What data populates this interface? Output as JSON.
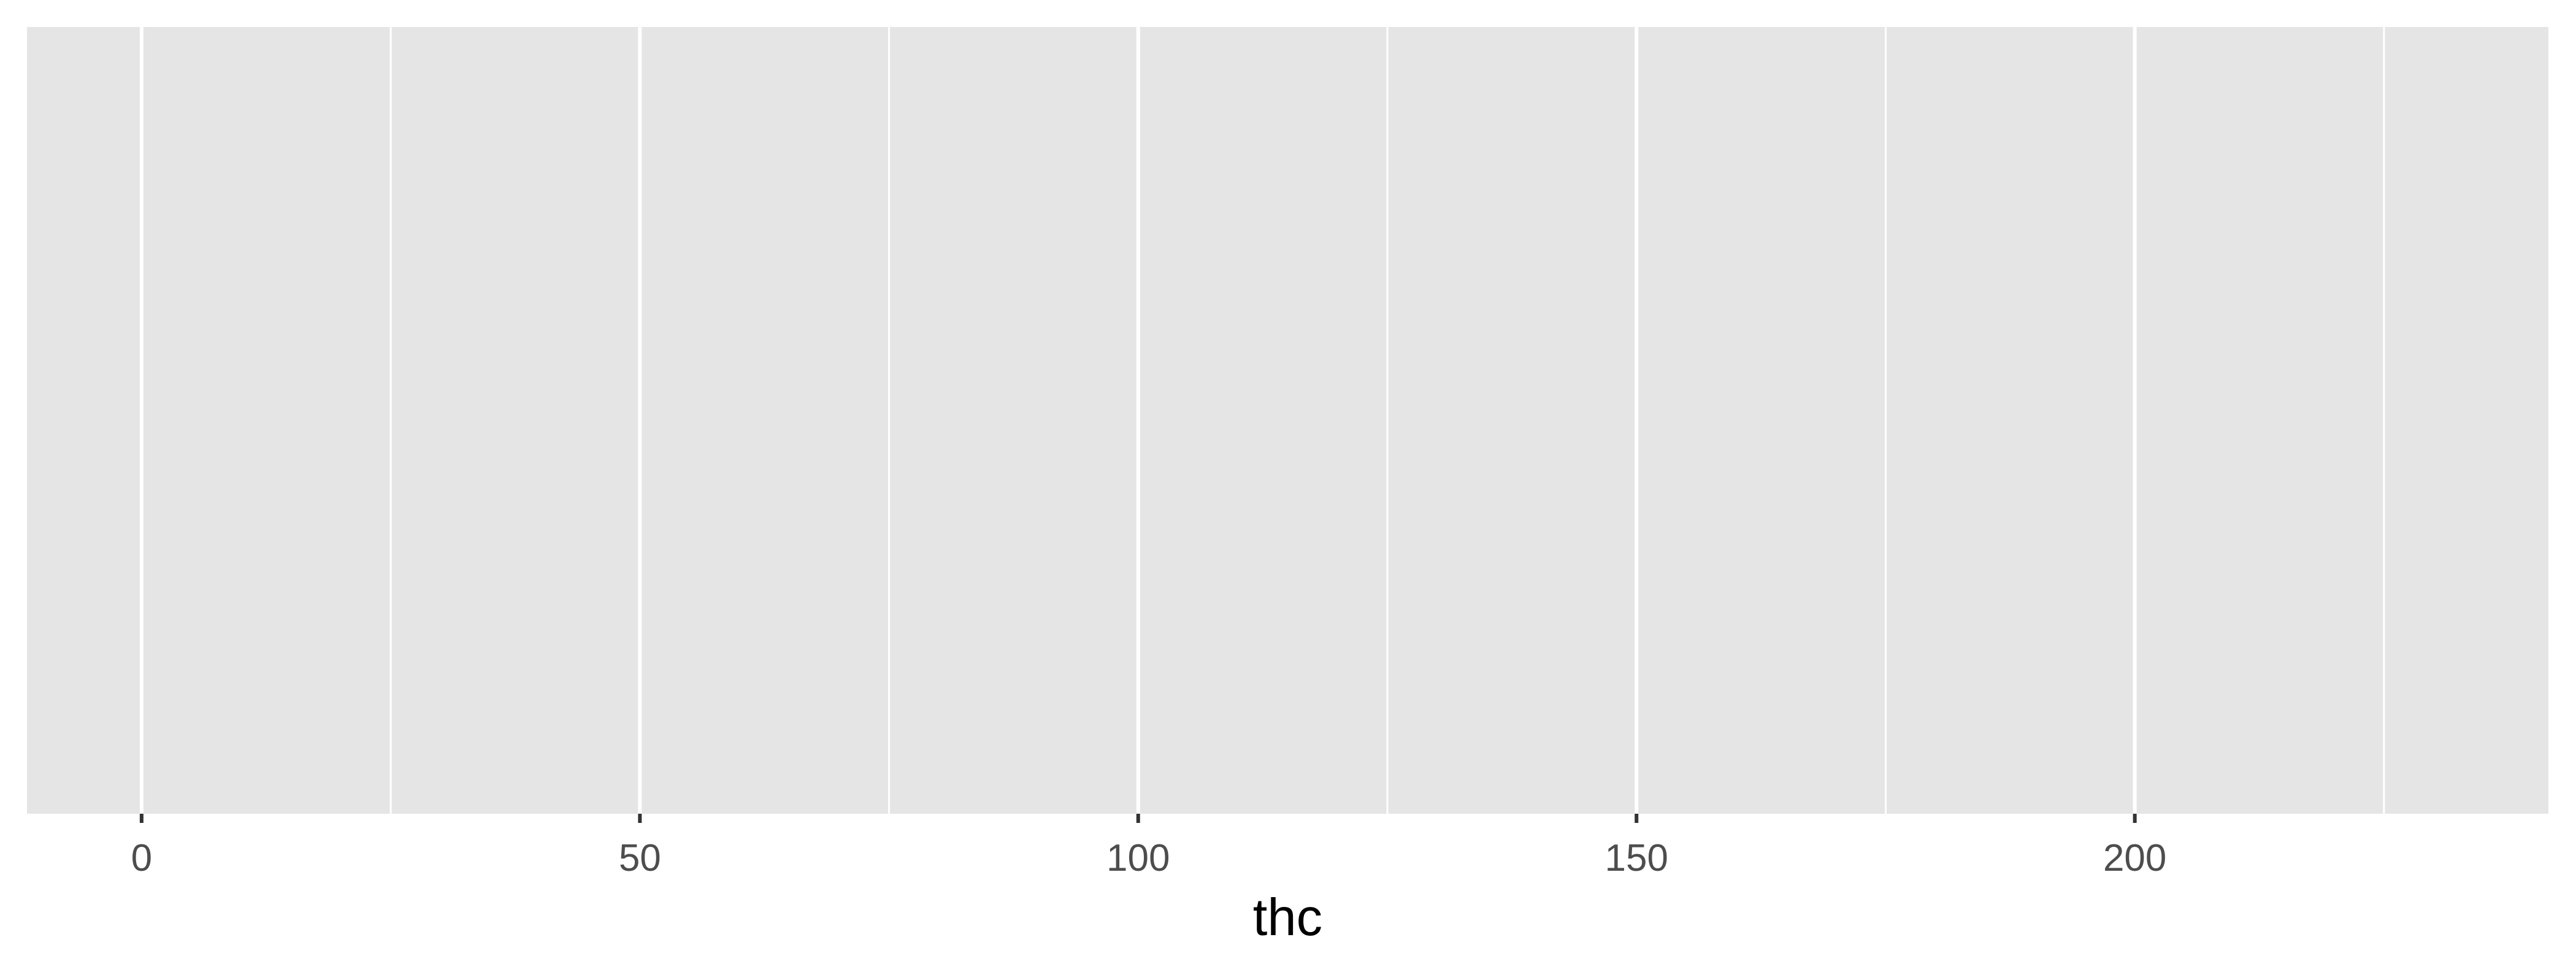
{
  "chart_data": {
    "type": "bar",
    "title": "",
    "xlabel": "thc",
    "ylabel": "",
    "xlim": [
      -11.5,
      241.5
    ],
    "x_ticks": [
      0,
      50,
      100,
      150,
      200
    ],
    "x_tick_labels": [
      "0",
      "50",
      "100",
      "150",
      "200"
    ],
    "x_minor_ticks": [
      25,
      75,
      125,
      175,
      225
    ],
    "series": [],
    "grid": true,
    "legend": "none",
    "colors": {
      "panel_background": "#e5e5e5",
      "grid_major": "#ffffff",
      "grid_minor": "#ffffff",
      "axis_tick": "#333333",
      "tick_label": "#4d4d4d",
      "axis_title": "#000000"
    }
  }
}
